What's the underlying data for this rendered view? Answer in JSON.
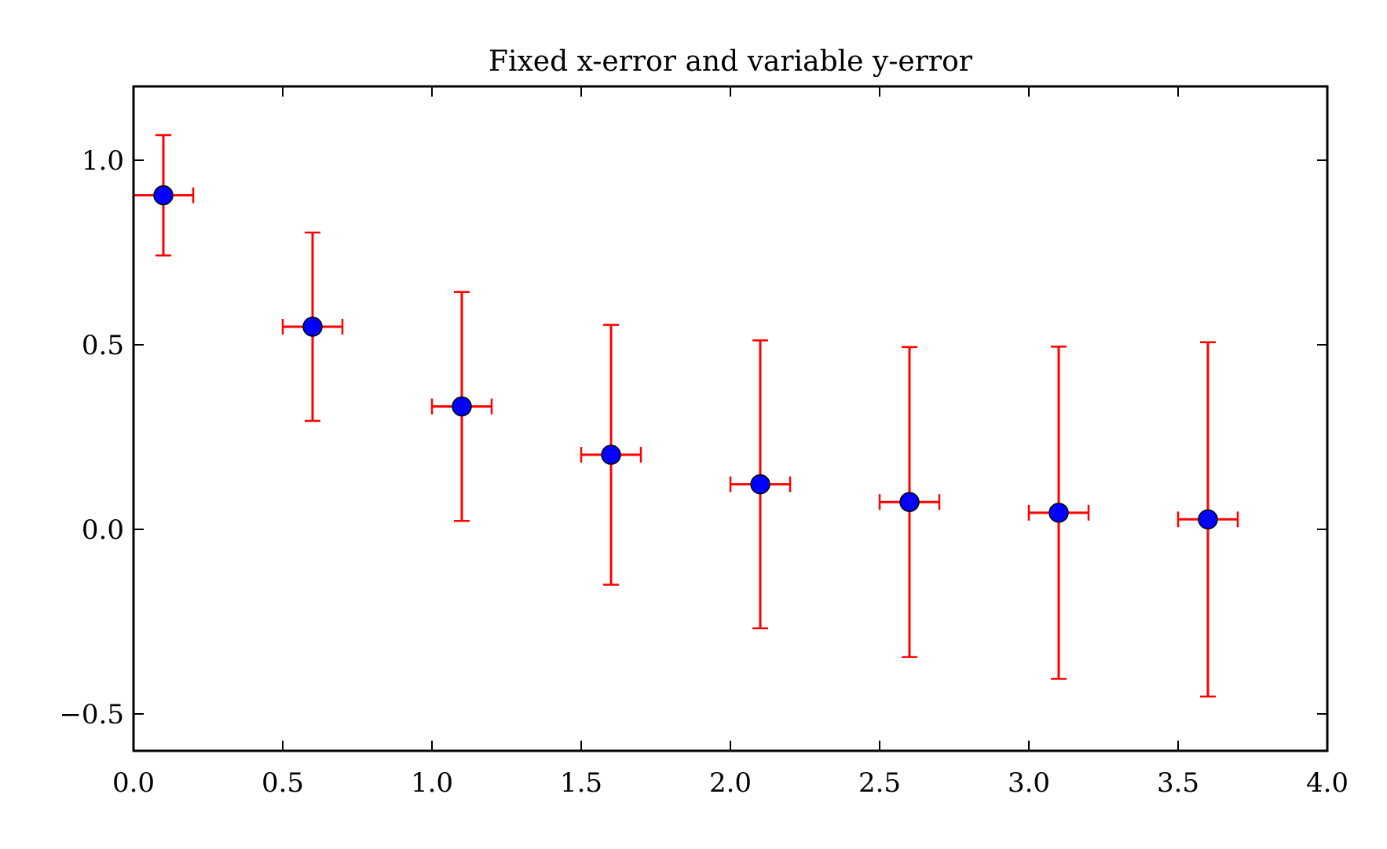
{
  "chart_data": {
    "type": "scatter",
    "title": "Fixed x-error and variable y-error",
    "xlabel": "",
    "ylabel": "",
    "xlim": [
      0.0,
      4.0
    ],
    "ylim": [
      -0.6,
      1.2
    ],
    "xticks": [
      0.0,
      0.5,
      1.0,
      1.5,
      2.0,
      2.5,
      3.0,
      3.5,
      4.0
    ],
    "xtick_labels": [
      "0.0",
      "0.5",
      "1.0",
      "1.5",
      "2.0",
      "2.5",
      "3.0",
      "3.5",
      "4.0"
    ],
    "yticks": [
      -0.5,
      0.0,
      0.5,
      1.0
    ],
    "ytick_labels": [
      "−0.5",
      "0.0",
      "0.5",
      "1.0"
    ],
    "grid": false,
    "legend": "none",
    "series": [
      {
        "x": [
          0.1,
          0.6,
          1.1,
          1.6,
          2.1,
          2.6,
          3.1,
          3.6
        ],
        "y": [
          0.905,
          0.549,
          0.333,
          0.202,
          0.122,
          0.074,
          0.045,
          0.027
        ],
        "xerr": 0.1,
        "yerr": [
          0.163,
          0.255,
          0.31,
          0.352,
          0.39,
          0.42,
          0.45,
          0.48
        ]
      }
    ],
    "colors": {
      "marker_fill": "#0000ff",
      "marker_edge": "#000000",
      "errorbar": "#ff0000",
      "axes": "#000000"
    }
  }
}
